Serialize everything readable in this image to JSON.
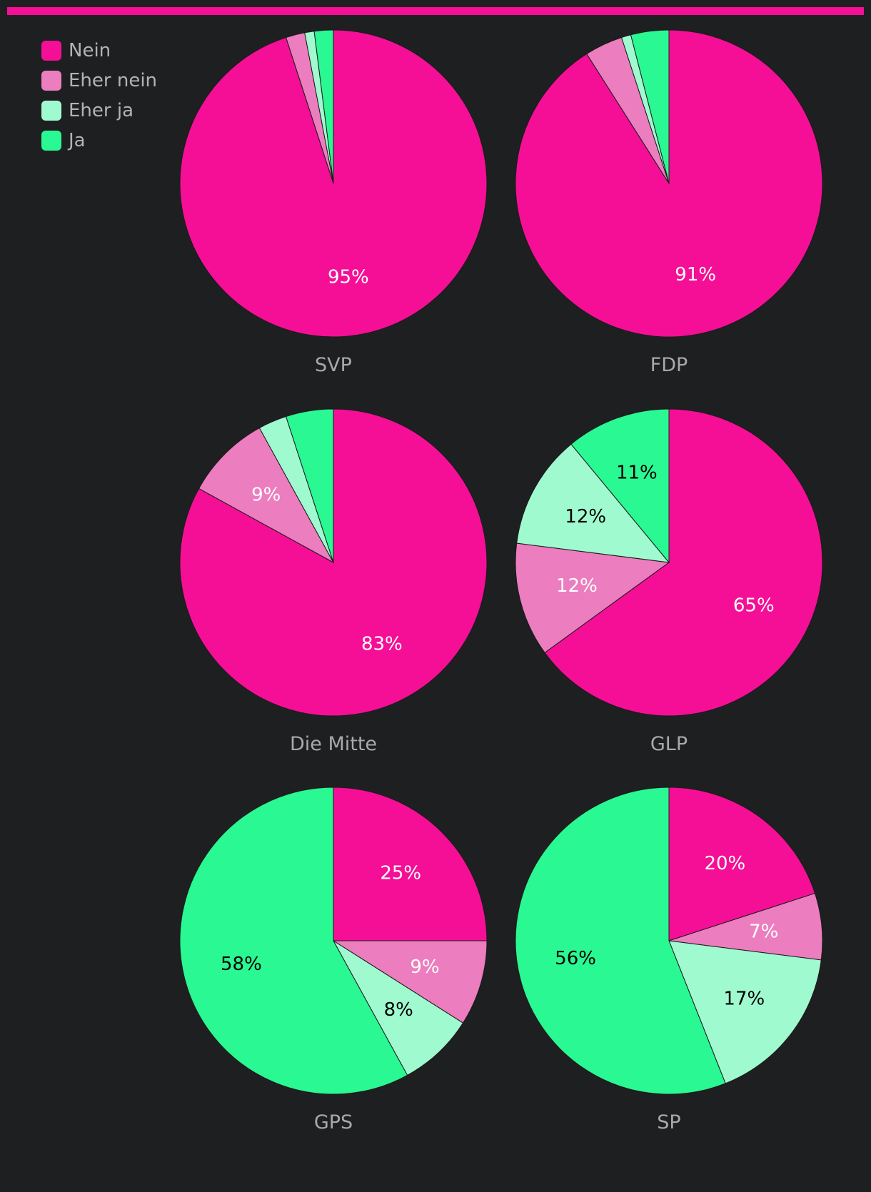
{
  "colors": {
    "background": "#1e1f21",
    "accent": "#f40f96",
    "Nein": "#f40f96",
    "Eher nein": "#ec7dbf",
    "Eher ja": "#a0fad0",
    "Ja": "#2af892"
  },
  "legend": {
    "items": [
      {
        "label": "Nein",
        "key": "Nein"
      },
      {
        "label": "Eher nein",
        "key": "Eher nein"
      },
      {
        "label": "Eher ja",
        "key": "Eher ja"
      },
      {
        "label": "Ja",
        "key": "Ja"
      }
    ]
  },
  "chart_data": {
    "type": "pie",
    "categories": [
      "Nein",
      "Eher nein",
      "Eher ja",
      "Ja"
    ],
    "series": [
      {
        "name": "SVP",
        "values": [
          95,
          2,
          1,
          2
        ],
        "labels": [
          "95%",
          "",
          "",
          ""
        ]
      },
      {
        "name": "FDP",
        "values": [
          91,
          4,
          1,
          4
        ],
        "labels": [
          "91%",
          "",
          "",
          ""
        ]
      },
      {
        "name": "Die Mitte",
        "values": [
          83,
          9,
          3,
          5
        ],
        "labels": [
          "83%",
          "9%",
          "",
          ""
        ]
      },
      {
        "name": "GLP",
        "values": [
          65,
          12,
          12,
          11
        ],
        "labels": [
          "65%",
          "12%",
          "12%",
          "11%"
        ]
      },
      {
        "name": "GPS",
        "values": [
          25,
          9,
          8,
          58
        ],
        "labels": [
          "25%",
          "9%",
          "8%",
          "58%"
        ]
      },
      {
        "name": "SP",
        "values": [
          20,
          7,
          17,
          56
        ],
        "labels": [
          "20%",
          "7%",
          "17%",
          "56%"
        ]
      }
    ]
  }
}
